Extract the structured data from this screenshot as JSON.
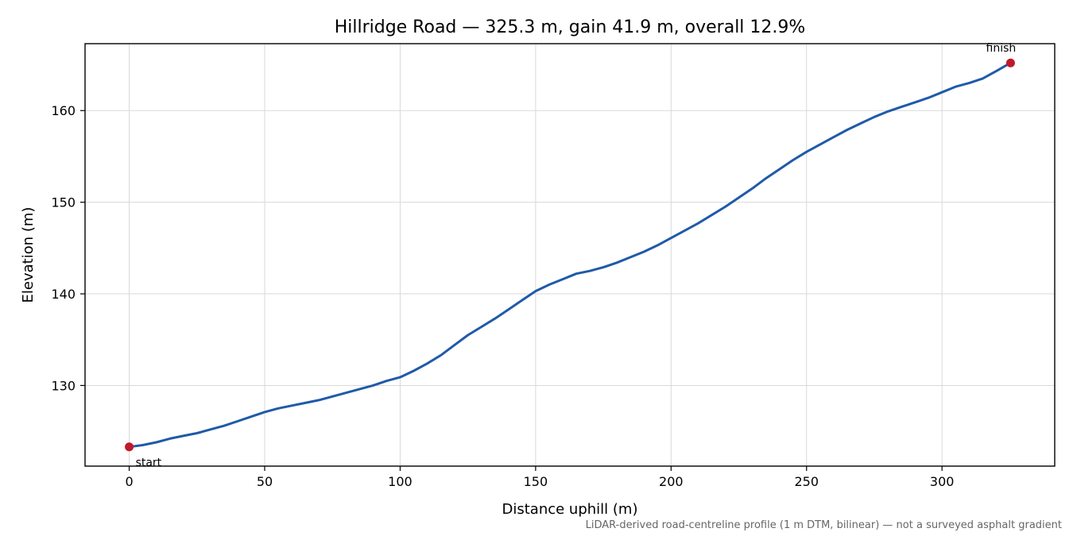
{
  "chart_data": {
    "type": "line",
    "title": "Hillridge Road — 325.3 m, gain 41.9 m, overall 12.9%",
    "xlabel": "Distance uphill (m)",
    "ylabel": "Elevation (m)",
    "xlim": [
      -16.3,
      341.6
    ],
    "ylim": [
      121.2,
      167.3
    ],
    "xticks": [
      0,
      50,
      100,
      150,
      200,
      250,
      300
    ],
    "yticks": [
      130,
      140,
      150,
      160
    ],
    "grid": true,
    "footnote": "LiDAR-derived road-centreline profile (1 m DTM, bilinear) — not a surveyed asphalt gradient",
    "line_color": "#1f5aa8",
    "marker_color": "#c0192a",
    "series": [
      {
        "x": [
          0,
          5,
          10,
          15,
          20,
          25,
          30,
          35,
          40,
          45,
          50,
          55,
          60,
          65,
          70,
          75,
          80,
          85,
          90,
          95,
          100,
          105,
          110,
          115,
          120,
          125,
          130,
          135,
          140,
          145,
          150,
          155,
          160,
          165,
          170,
          175,
          180,
          185,
          190,
          195,
          200,
          205,
          210,
          215,
          220,
          225,
          230,
          235,
          240,
          245,
          250,
          255,
          260,
          265,
          270,
          275,
          280,
          285,
          290,
          295,
          300,
          305,
          310,
          315,
          320,
          325.3
        ],
        "y": [
          123.3,
          123.5,
          123.8,
          124.2,
          124.5,
          124.8,
          125.2,
          125.6,
          126.1,
          126.6,
          127.1,
          127.5,
          127.8,
          128.1,
          128.4,
          128.8,
          129.2,
          129.6,
          130.0,
          130.5,
          130.9,
          131.6,
          132.4,
          133.3,
          134.4,
          135.5,
          136.4,
          137.3,
          138.3,
          139.3,
          140.3,
          141.0,
          141.6,
          142.2,
          142.5,
          142.9,
          143.4,
          144.0,
          144.6,
          145.3,
          146.1,
          146.9,
          147.7,
          148.6,
          149.5,
          150.5,
          151.5,
          152.6,
          153.6,
          154.6,
          155.5,
          156.3,
          157.1,
          157.9,
          158.6,
          159.3,
          159.9,
          160.4,
          160.9,
          161.4,
          162.0,
          162.6,
          163.0,
          163.5,
          164.3,
          165.2
        ]
      }
    ],
    "annotations": [
      {
        "text": "start",
        "x": 0,
        "y": 123.3
      },
      {
        "text": "finish",
        "x": 325.3,
        "y": 165.2
      }
    ]
  }
}
